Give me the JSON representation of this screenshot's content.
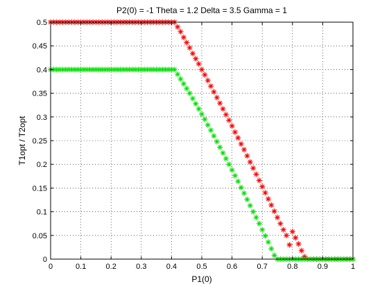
{
  "chart_data": {
    "type": "scatter",
    "title": "P2(0) = -1 Theta = 1.2 Delta = 3.5 Gamma = 1",
    "xlabel": "P1(0)",
    "ylabel": "T1opt / T2opt",
    "xlim": [
      0,
      1
    ],
    "ylim": [
      0,
      0.5
    ],
    "xticks": [
      "0",
      "0.1",
      "0.2",
      "0.3",
      "0.4",
      "0.5",
      "0.6",
      "0.7",
      "0.8",
      "0.9",
      "1"
    ],
    "yticks": [
      "0",
      "0.05",
      "0.1",
      "0.15",
      "0.2",
      "0.25",
      "0.3",
      "0.35",
      "0.4",
      "0.45",
      "0.5"
    ],
    "grid": true,
    "marker": "asterisk",
    "series": [
      {
        "color": "#ff0000",
        "x": [
          0,
          0.01,
          0.02,
          0.03,
          0.04,
          0.05,
          0.06,
          0.07,
          0.08,
          0.09,
          0.1,
          0.11,
          0.12,
          0.13,
          0.14,
          0.15,
          0.16,
          0.17,
          0.18,
          0.19,
          0.2,
          0.21,
          0.22,
          0.23,
          0.24,
          0.25,
          0.26,
          0.27,
          0.28,
          0.29,
          0.3,
          0.31,
          0.32,
          0.33,
          0.34,
          0.35,
          0.36,
          0.37,
          0.38,
          0.39,
          0.4,
          0.41,
          0.42,
          0.43,
          0.44,
          0.45,
          0.46,
          0.47,
          0.48,
          0.49,
          0.5,
          0.51,
          0.52,
          0.53,
          0.54,
          0.55,
          0.56,
          0.57,
          0.58,
          0.59,
          0.6,
          0.61,
          0.62,
          0.63,
          0.64,
          0.65,
          0.66,
          0.67,
          0.68,
          0.69,
          0.7,
          0.71,
          0.72,
          0.73,
          0.74,
          0.75,
          0.76,
          0.77,
          0.78,
          0.79,
          0.8,
          0.81,
          0.82,
          0.83,
          0.84,
          0.85,
          0.86,
          0.87,
          0.88,
          0.89,
          0.9,
          0.91,
          0.92,
          0.93,
          0.94,
          0.95,
          0.96,
          0.97,
          0.98,
          0.99,
          1.0
        ],
        "y": [
          0.5,
          0.5,
          0.5,
          0.5,
          0.5,
          0.5,
          0.5,
          0.5,
          0.5,
          0.5,
          0.5,
          0.5,
          0.5,
          0.5,
          0.5,
          0.5,
          0.5,
          0.5,
          0.5,
          0.5,
          0.5,
          0.5,
          0.5,
          0.5,
          0.5,
          0.5,
          0.5,
          0.5,
          0.5,
          0.5,
          0.5,
          0.5,
          0.5,
          0.5,
          0.5,
          0.5,
          0.5,
          0.5,
          0.5,
          0.5,
          0.5,
          0.5,
          0.49,
          0.48,
          0.468,
          0.457,
          0.446,
          0.434,
          0.423,
          0.412,
          0.4,
          0.389,
          0.377,
          0.365,
          0.353,
          0.341,
          0.329,
          0.317,
          0.305,
          0.293,
          0.281,
          0.268,
          0.256,
          0.243,
          0.231,
          0.218,
          0.205,
          0.192,
          0.179,
          0.166,
          0.153,
          0.14,
          0.127,
          0.114,
          0.101,
          0.088,
          0.075,
          0.062,
          0.05,
          0.03,
          0.058,
          0.045,
          0.032,
          0.018,
          0.005,
          0,
          0,
          0,
          0,
          0,
          0,
          0,
          0,
          0,
          0,
          0,
          0,
          0,
          0,
          0,
          0
        ]
      },
      {
        "color": "#00e000",
        "x": [
          0,
          0.01,
          0.02,
          0.03,
          0.04,
          0.05,
          0.06,
          0.07,
          0.08,
          0.09,
          0.1,
          0.11,
          0.12,
          0.13,
          0.14,
          0.15,
          0.16,
          0.17,
          0.18,
          0.19,
          0.2,
          0.21,
          0.22,
          0.23,
          0.24,
          0.25,
          0.26,
          0.27,
          0.28,
          0.29,
          0.3,
          0.31,
          0.32,
          0.33,
          0.34,
          0.35,
          0.36,
          0.37,
          0.38,
          0.39,
          0.4,
          0.41,
          0.42,
          0.43,
          0.44,
          0.45,
          0.46,
          0.47,
          0.48,
          0.49,
          0.5,
          0.51,
          0.52,
          0.53,
          0.54,
          0.55,
          0.56,
          0.57,
          0.58,
          0.59,
          0.6,
          0.61,
          0.62,
          0.63,
          0.64,
          0.65,
          0.66,
          0.67,
          0.68,
          0.69,
          0.7,
          0.71,
          0.72,
          0.73,
          0.74,
          0.75,
          0.76,
          0.77,
          0.78,
          0.79,
          0.8,
          0.81,
          0.82,
          0.83,
          0.84,
          0.85,
          0.86,
          0.87,
          0.88,
          0.89,
          0.9,
          0.91,
          0.92,
          0.93,
          0.94,
          0.95,
          0.96,
          0.97,
          0.98,
          0.99,
          1.0
        ],
        "y": [
          0.4,
          0.4,
          0.4,
          0.4,
          0.4,
          0.4,
          0.4,
          0.4,
          0.4,
          0.4,
          0.4,
          0.4,
          0.4,
          0.4,
          0.4,
          0.4,
          0.4,
          0.4,
          0.4,
          0.4,
          0.4,
          0.4,
          0.4,
          0.4,
          0.4,
          0.4,
          0.4,
          0.4,
          0.4,
          0.4,
          0.4,
          0.4,
          0.4,
          0.4,
          0.4,
          0.4,
          0.4,
          0.4,
          0.4,
          0.4,
          0.4,
          0.4,
          0.39,
          0.38,
          0.37,
          0.36,
          0.35,
          0.339,
          0.328,
          0.317,
          0.306,
          0.295,
          0.283,
          0.272,
          0.26,
          0.248,
          0.236,
          0.224,
          0.212,
          0.2,
          0.188,
          0.176,
          0.164,
          0.151,
          0.139,
          0.126,
          0.113,
          0.1,
          0.088,
          0.075,
          0.062,
          0.049,
          0.036,
          0.022,
          0.008,
          0,
          0,
          0,
          0,
          0,
          0,
          0,
          0,
          0,
          0,
          0,
          0,
          0,
          0,
          0,
          0,
          0,
          0,
          0,
          0,
          0,
          0,
          0,
          0,
          0,
          0
        ]
      }
    ]
  }
}
